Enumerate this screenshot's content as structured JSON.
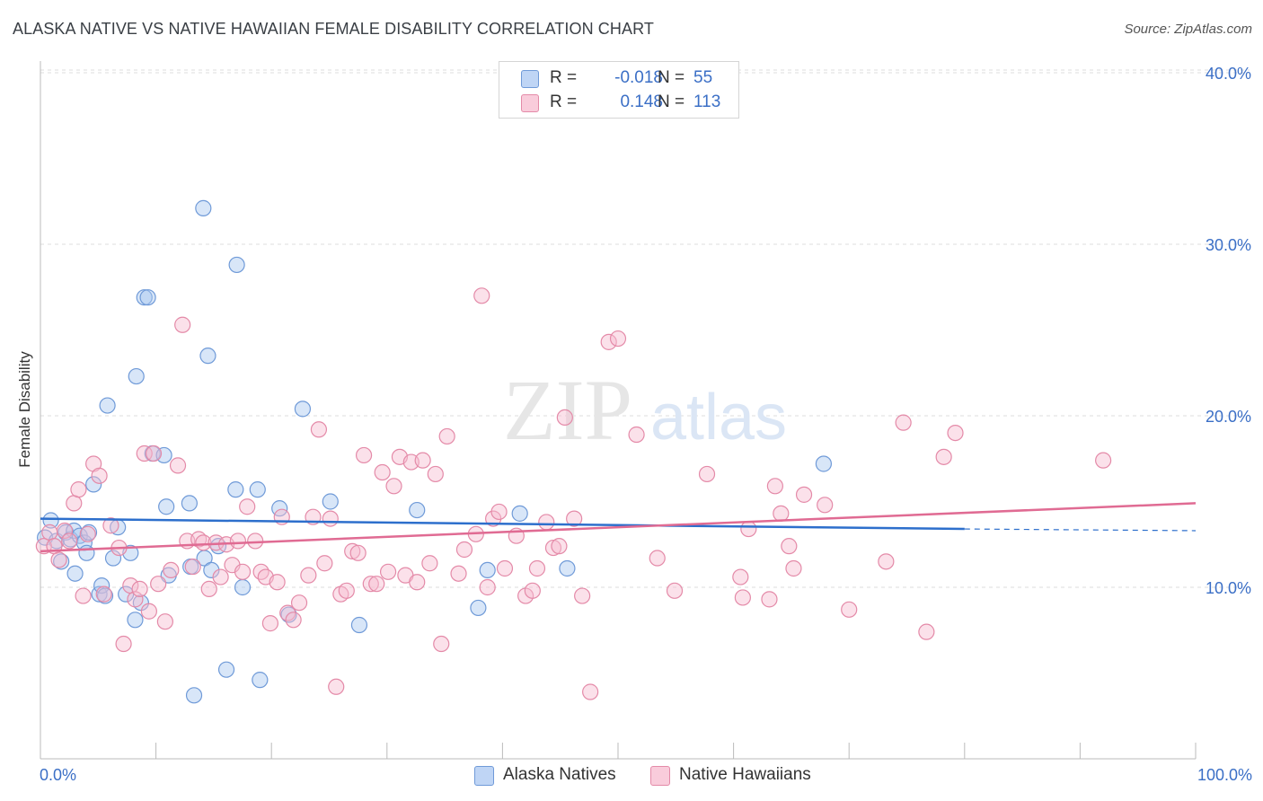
{
  "header": {
    "title": "ALASKA NATIVE VS NATIVE HAWAIIAN FEMALE DISABILITY CORRELATION CHART",
    "source": "Source: ZipAtlas.com"
  },
  "legend": {
    "r_label": "R =",
    "n_label": "N =",
    "rows": [
      {
        "r": "-0.018",
        "n": "55",
        "color": "#a9c7f0",
        "border": "#6f9ad8"
      },
      {
        "r": "0.148",
        "n": "113",
        "color": "#f7bcd0",
        "border": "#e48aa8"
      }
    ]
  },
  "watermark": {
    "zip": "ZIP",
    "atlas": "atlas"
  },
  "chart_data": {
    "type": "scatter",
    "title": "ALASKA NATIVE VS NATIVE HAWAIIAN FEMALE DISABILITY CORRELATION CHART",
    "xlabel": "",
    "ylabel": "Female Disability",
    "xlim": [
      0,
      100
    ],
    "ylim": [
      0,
      42
    ],
    "x_tick_labels": [
      "0.0%",
      "100.0%"
    ],
    "y_ticks": [
      10,
      20,
      30,
      40
    ],
    "y_tick_labels": [
      "10.0%",
      "20.0%",
      "30.0%",
      "40.0%"
    ],
    "grid": true,
    "legend_position": "top-center",
    "series": [
      {
        "name": "Alaska Natives",
        "color": "#a9c7f0",
        "edge": "#6f9ad8",
        "trend": {
          "x": [
            0,
            80
          ],
          "y": [
            14.0,
            13.4
          ],
          "dashed_to": 100,
          "dashed_y": 13.3,
          "color": "#2d6fcc"
        },
        "points": [
          [
            0.4,
            12.9
          ],
          [
            0.9,
            13.9
          ],
          [
            1.4,
            12.7
          ],
          [
            1.8,
            11.5
          ],
          [
            2.2,
            13.2
          ],
          [
            2.6,
            12.8
          ],
          [
            2.9,
            13.3
          ],
          [
            3.0,
            10.8
          ],
          [
            3.4,
            13.0
          ],
          [
            3.8,
            12.6
          ],
          [
            4.0,
            12.0
          ],
          [
            4.2,
            13.2
          ],
          [
            4.6,
            16.0
          ],
          [
            5.1,
            9.6
          ],
          [
            5.3,
            10.1
          ],
          [
            5.6,
            9.5
          ],
          [
            5.8,
            20.6
          ],
          [
            6.3,
            11.7
          ],
          [
            6.7,
            13.5
          ],
          [
            7.4,
            9.6
          ],
          [
            7.8,
            12.0
          ],
          [
            8.2,
            8.1
          ],
          [
            8.3,
            22.3
          ],
          [
            8.7,
            9.1
          ],
          [
            9.0,
            26.9
          ],
          [
            9.3,
            26.9
          ],
          [
            9.7,
            17.8
          ],
          [
            10.7,
            17.7
          ],
          [
            10.9,
            14.7
          ],
          [
            11.1,
            10.7
          ],
          [
            12.9,
            14.9
          ],
          [
            13.0,
            11.2
          ],
          [
            13.3,
            3.7
          ],
          [
            14.1,
            32.1
          ],
          [
            14.2,
            11.7
          ],
          [
            14.5,
            23.5
          ],
          [
            14.8,
            11.0
          ],
          [
            15.4,
            12.4
          ],
          [
            16.1,
            5.2
          ],
          [
            16.9,
            15.7
          ],
          [
            17.0,
            28.8
          ],
          [
            17.5,
            10.0
          ],
          [
            18.8,
            15.7
          ],
          [
            19.0,
            4.6
          ],
          [
            20.7,
            14.6
          ],
          [
            21.5,
            8.4
          ],
          [
            22.7,
            20.4
          ],
          [
            25.1,
            15.0
          ],
          [
            27.6,
            7.8
          ],
          [
            32.6,
            14.5
          ],
          [
            37.9,
            8.8
          ],
          [
            38.7,
            11.0
          ],
          [
            41.5,
            14.3
          ],
          [
            45.6,
            11.1
          ],
          [
            67.8,
            17.2
          ]
        ]
      },
      {
        "name": "Native Hawaiians",
        "color": "#f7bcd0",
        "edge": "#e48aa8",
        "trend": {
          "x": [
            0,
            100
          ],
          "y": [
            12.1,
            14.9
          ],
          "color": "#e06b93"
        },
        "points": [
          [
            0.3,
            12.4
          ],
          [
            0.8,
            13.2
          ],
          [
            1.2,
            12.4
          ],
          [
            1.6,
            11.6
          ],
          [
            2.1,
            13.3
          ],
          [
            2.5,
            12.7
          ],
          [
            2.9,
            14.9
          ],
          [
            3.3,
            15.7
          ],
          [
            3.7,
            9.5
          ],
          [
            4.1,
            13.1
          ],
          [
            4.6,
            17.2
          ],
          [
            5.1,
            16.5
          ],
          [
            5.5,
            9.6
          ],
          [
            6.1,
            13.6
          ],
          [
            6.8,
            12.3
          ],
          [
            7.2,
            6.7
          ],
          [
            7.8,
            10.1
          ],
          [
            8.2,
            9.3
          ],
          [
            8.6,
            9.9
          ],
          [
            9.0,
            17.8
          ],
          [
            9.4,
            8.6
          ],
          [
            9.8,
            17.8
          ],
          [
            10.2,
            10.2
          ],
          [
            10.8,
            8.0
          ],
          [
            11.3,
            11.0
          ],
          [
            11.9,
            17.1
          ],
          [
            12.3,
            25.3
          ],
          [
            12.7,
            12.7
          ],
          [
            13.2,
            11.2
          ],
          [
            13.7,
            12.8
          ],
          [
            14.1,
            12.6
          ],
          [
            14.6,
            9.9
          ],
          [
            15.2,
            12.6
          ],
          [
            15.6,
            10.6
          ],
          [
            16.1,
            12.5
          ],
          [
            16.6,
            11.3
          ],
          [
            17.1,
            12.7
          ],
          [
            17.5,
            10.9
          ],
          [
            17.9,
            14.7
          ],
          [
            18.6,
            12.7
          ],
          [
            19.1,
            10.9
          ],
          [
            19.5,
            10.6
          ],
          [
            19.9,
            7.9
          ],
          [
            20.5,
            10.3
          ],
          [
            20.9,
            14.1
          ],
          [
            21.4,
            8.5
          ],
          [
            21.9,
            8.1
          ],
          [
            22.4,
            9.1
          ],
          [
            23.2,
            10.7
          ],
          [
            23.6,
            14.1
          ],
          [
            24.1,
            19.2
          ],
          [
            24.6,
            11.4
          ],
          [
            25.1,
            14.0
          ],
          [
            25.6,
            4.2
          ],
          [
            26.0,
            9.6
          ],
          [
            26.5,
            9.8
          ],
          [
            27.0,
            12.1
          ],
          [
            27.5,
            12.0
          ],
          [
            28.0,
            17.7
          ],
          [
            28.6,
            10.2
          ],
          [
            29.1,
            10.2
          ],
          [
            29.6,
            16.7
          ],
          [
            30.1,
            10.9
          ],
          [
            30.6,
            15.9
          ],
          [
            31.1,
            17.6
          ],
          [
            31.6,
            10.7
          ],
          [
            32.1,
            17.3
          ],
          [
            32.6,
            10.3
          ],
          [
            33.1,
            17.4
          ],
          [
            33.7,
            11.4
          ],
          [
            34.2,
            16.6
          ],
          [
            34.7,
            6.7
          ],
          [
            35.2,
            18.8
          ],
          [
            36.2,
            10.8
          ],
          [
            36.7,
            12.2
          ],
          [
            37.7,
            13.1
          ],
          [
            38.2,
            27.0
          ],
          [
            38.7,
            10.0
          ],
          [
            39.2,
            14.0
          ],
          [
            39.7,
            14.4
          ],
          [
            40.2,
            11.1
          ],
          [
            41.2,
            13.0
          ],
          [
            42.0,
            9.5
          ],
          [
            42.6,
            9.8
          ],
          [
            43.0,
            11.1
          ],
          [
            43.8,
            13.8
          ],
          [
            44.4,
            12.3
          ],
          [
            44.9,
            12.4
          ],
          [
            45.4,
            19.9
          ],
          [
            46.2,
            14.0
          ],
          [
            46.9,
            9.5
          ],
          [
            47.6,
            3.9
          ],
          [
            49.2,
            24.3
          ],
          [
            50.0,
            24.5
          ],
          [
            51.6,
            18.9
          ],
          [
            53.4,
            11.7
          ],
          [
            54.9,
            9.8
          ],
          [
            57.7,
            16.6
          ],
          [
            60.6,
            10.6
          ],
          [
            60.8,
            9.4
          ],
          [
            61.3,
            13.4
          ],
          [
            63.1,
            9.3
          ],
          [
            63.6,
            15.9
          ],
          [
            64.1,
            14.3
          ],
          [
            64.8,
            12.4
          ],
          [
            65.2,
            11.1
          ],
          [
            66.1,
            15.4
          ],
          [
            67.9,
            14.8
          ],
          [
            70.0,
            8.7
          ],
          [
            73.2,
            11.5
          ],
          [
            74.7,
            19.6
          ],
          [
            76.7,
            7.4
          ],
          [
            78.2,
            17.6
          ],
          [
            79.2,
            19.0
          ],
          [
            92.0,
            17.4
          ]
        ]
      }
    ]
  },
  "bottom_legend": {
    "items": [
      {
        "label": "Alaska Natives"
      },
      {
        "label": "Native Hawaiians"
      }
    ]
  }
}
